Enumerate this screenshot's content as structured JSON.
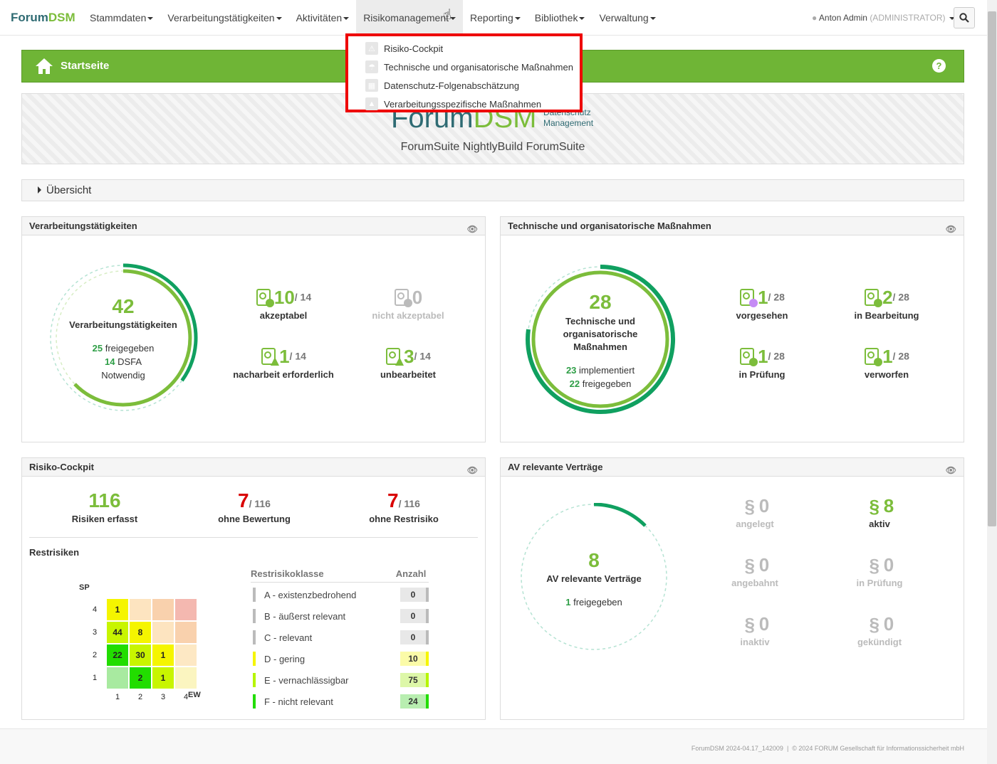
{
  "brand": {
    "part1": "Forum",
    "part2": "DSM"
  },
  "nav": [
    {
      "label": "Stammdaten"
    },
    {
      "label": "Verarbeitungstätigkeiten"
    },
    {
      "label": "Aktivitäten"
    },
    {
      "label": "Risikomanagement"
    },
    {
      "label": "Reporting"
    },
    {
      "label": "Bibliothek"
    },
    {
      "label": "Verwaltung"
    }
  ],
  "user": {
    "name": "Anton Admin",
    "role": "(ADMINISTRATOR)"
  },
  "dropdown": [
    {
      "label": "Risiko-Cockpit",
      "icon": "warning-icon"
    },
    {
      "label": "Technische und organisatorische Maßnahmen",
      "icon": "umbrella-icon"
    },
    {
      "label": "Datenschutz-Folgenabschätzung",
      "icon": "calculator-icon"
    },
    {
      "label": "Verarbeitungsspezifische Maßnahmen",
      "icon": "truck-icon"
    }
  ],
  "header": {
    "title": "Startseite",
    "help": "?"
  },
  "banner": {
    "logo1": "Forum",
    "logo2": "DSM",
    "sub1": "Datenschutz",
    "sub2": "Management",
    "subtitle": "ForumSuite NightlyBuild ForumSuite"
  },
  "overview": {
    "label": "Übersicht"
  },
  "vt": {
    "title": "Verarbeitungstätigkeiten",
    "total": "42",
    "total_label": "Verarbeitungstätigkeiten",
    "freigegeben_num": "25",
    "freigegeben_label": "freigegeben",
    "dsfa_num": "14",
    "dsfa_label": "DSFA",
    "notwendig": "Notwendig",
    "stats": [
      {
        "num": "10",
        "tot": "/ 14",
        "label": "akzeptabel"
      },
      {
        "num": "0",
        "tot": "",
        "label": "nicht akzeptabel"
      },
      {
        "num": "1",
        "tot": "/ 14",
        "label": "nacharbeit erforderlich"
      },
      {
        "num": "3",
        "tot": "/ 14",
        "label": "unbearbeitet"
      }
    ]
  },
  "tom": {
    "title": "Technische und organisatorische Maßnahmen",
    "total": "28",
    "total_label1": "Technische und",
    "total_label2": "organisatorische",
    "total_label3": "Maßnahmen",
    "impl_num": "23",
    "impl_label": "implementiert",
    "frei_num": "22",
    "frei_label": "freigegeben",
    "stats": [
      {
        "num": "1",
        "tot": "/ 28",
        "label": "vorgesehen"
      },
      {
        "num": "2",
        "tot": "/ 28",
        "label": "in Bearbeitung"
      },
      {
        "num": "1",
        "tot": "/ 28",
        "label": "in Prüfung"
      },
      {
        "num": "1",
        "tot": "/ 28",
        "label": "verworfen"
      }
    ]
  },
  "risk": {
    "title": "Risiko-Cockpit",
    "erfasst_num": "116",
    "erfasst_label": "Risiken erfasst",
    "ohne_bew_num": "7",
    "ohne_bew_tot": "/ 116",
    "ohne_bew_label": "ohne Bewertung",
    "ohne_rest_num": "7",
    "ohne_rest_tot": "/ 116",
    "ohne_rest_label": "ohne Restrisiko",
    "restrisiken": "Restrisiken",
    "sp": "SP",
    "ew": "EW",
    "matrix_rows": [
      "4",
      "3",
      "2",
      "1"
    ],
    "matrix_cols": [
      "1",
      "2",
      "3",
      "4"
    ],
    "matrix": [
      [
        {
          "v": "1",
          "c": "#f5f500"
        },
        {
          "v": "",
          "c": "#fde4c0"
        },
        {
          "v": "",
          "c": "#f9d1ad"
        },
        {
          "v": "",
          "c": "#f4b8b0"
        }
      ],
      [
        {
          "v": "44",
          "c": "#c8f500"
        },
        {
          "v": "8",
          "c": "#f5f500"
        },
        {
          "v": "",
          "c": "#fde4c0"
        },
        {
          "v": "",
          "c": "#f9d1ad"
        }
      ],
      [
        {
          "v": "22",
          "c": "#22dd00"
        },
        {
          "v": "30",
          "c": "#c8f500"
        },
        {
          "v": "1",
          "c": "#f5f500"
        },
        {
          "v": "",
          "c": "#fde8c4"
        }
      ],
      [
        {
          "v": "",
          "c": "#a8eaa0"
        },
        {
          "v": "2",
          "c": "#22dd00"
        },
        {
          "v": "1",
          "c": "#c8f500"
        },
        {
          "v": "",
          "c": "#fbf5c0"
        }
      ]
    ],
    "table_head_class": "Restrisikoklasse",
    "table_head_count": "Anzahl",
    "classes": [
      {
        "label": "A - existenzbedrohend",
        "count": "0",
        "color": "#bbbbbb",
        "bg": "#e8e8e8"
      },
      {
        "label": "B - äußerst relevant",
        "count": "0",
        "color": "#bbbbbb",
        "bg": "#e8e8e8"
      },
      {
        "label": "C - relevant",
        "count": "0",
        "color": "#bbbbbb",
        "bg": "#e8e8e8"
      },
      {
        "label": "D - gering",
        "count": "10",
        "color": "#f5f500",
        "bg": "#fbfba8"
      },
      {
        "label": "E - vernachlässigbar",
        "count": "75",
        "color": "#b6f500",
        "bg": "#ddf7a8"
      },
      {
        "label": "F - nicht relevant",
        "count": "24",
        "color": "#22dd00",
        "bg": "#b8eeb0"
      }
    ]
  },
  "av": {
    "title": "AV relevante Verträge",
    "total": "8",
    "total_label": "AV relevante Verträge",
    "frei_num": "1",
    "frei_label": "freigegeben",
    "stats": [
      {
        "num": "0",
        "label": "angelegt",
        "active": false
      },
      {
        "num": "8",
        "label": "aktiv",
        "active": true
      },
      {
        "num": "0",
        "label": "angebahnt",
        "active": false
      },
      {
        "num": "0",
        "label": "in Prüfung",
        "active": false
      },
      {
        "num": "0",
        "label": "inaktiv",
        "active": false
      },
      {
        "num": "0",
        "label": "gekündigt",
        "active": false
      }
    ]
  },
  "footer": {
    "version": "ForumDSM 2024-04.17_142009",
    "copyright": "© 2024 FORUM Gesellschaft für Informationssicherheit mbH"
  },
  "colors": {
    "accent": "#7cbd3b",
    "dark_green": "#10a060",
    "brand_teal": "#2f6b73",
    "red": "#d90000"
  }
}
